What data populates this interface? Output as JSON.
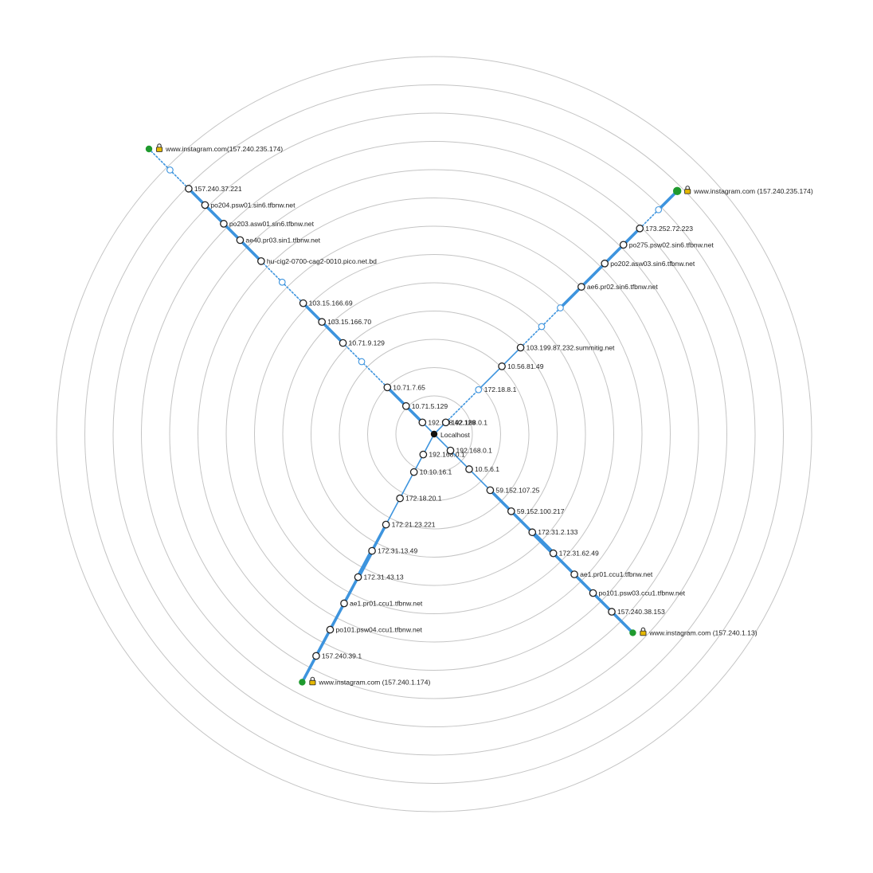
{
  "center": {
    "label": "Localhost"
  },
  "colors": {
    "link": "#3d94de",
    "ring": "#c4c4c4",
    "destination": "#1f9a2e",
    "lock_body": "#e6b800",
    "hop_stroke": "#222222"
  },
  "ring_count": 13,
  "icons": {
    "destination_lock": "lock-icon"
  },
  "routes": [
    {
      "id": "northwest",
      "destination": "www.instagram.com(157.240.235.174)",
      "hops": [
        {
          "label": "192.168.42.129",
          "dist": 0.5,
          "link": "thin"
        },
        {
          "label": "10.71.5.129",
          "dist": 1.2,
          "link": "thick"
        },
        {
          "label": "10.71.7.65",
          "dist": 2.0,
          "link": "thick"
        },
        {
          "label": "",
          "dist": 3.1,
          "link": "dotted",
          "unknown": true
        },
        {
          "label": "10.71.9.129",
          "dist": 3.9,
          "link": "dotted"
        },
        {
          "label": "103.15.166.70",
          "dist": 4.8,
          "link": "thick"
        },
        {
          "label": "103.15.166.69",
          "dist": 5.6,
          "link": "thick"
        },
        {
          "label": "",
          "dist": 6.5,
          "link": "dotted",
          "unknown": true
        },
        {
          "label": "hu-cig2-0700-cag2-0010.pico.net.bd",
          "dist": 7.4,
          "link": "dotted"
        },
        {
          "label": "ae40.pr03.sin1.tfbnw.net",
          "dist": 8.3,
          "link": "thick"
        },
        {
          "label": "po203.asw01.sin6.tfbnw.net",
          "dist": 9.0,
          "link": "thick"
        },
        {
          "label": "po204.psw01.sin6.tfbnw.net",
          "dist": 9.8,
          "link": "thick"
        },
        {
          "label": "157.240.37.221",
          "dist": 10.5,
          "link": "thick"
        },
        {
          "label": "",
          "dist": 11.3,
          "link": "dotted",
          "unknown": true
        }
      ],
      "dest_dist": 12.2,
      "dest_link": "dotted"
    },
    {
      "id": "northeast",
      "destination": "www.instagram.com (157.240.235.174)",
      "hops": [
        {
          "label": "192.168.0.1",
          "dist": 0.5,
          "link": "thin"
        },
        {
          "label": "",
          "dist": 1.9,
          "link": "dotted",
          "unknown": true
        },
        {
          "label": "172.18.8.1",
          "dist": 1.9,
          "link": "none",
          "label_only": true
        },
        {
          "label": "10.56.81.49",
          "dist": 2.9,
          "link": "thin"
        },
        {
          "label": "103.199.87.232.summitig.net",
          "dist": 3.7,
          "link": "thin"
        },
        {
          "label": "",
          "dist": 4.6,
          "link": "dotted",
          "unknown": true
        },
        {
          "label": "",
          "dist": 5.4,
          "link": "dotted",
          "unknown": true
        },
        {
          "label": "ae6.pr02.sin6.tfbnw.net",
          "dist": 6.3,
          "link": "thick"
        },
        {
          "label": "po202.asw03.sin6.tfbnw.net",
          "dist": 7.3,
          "link": "thick"
        },
        {
          "label": "po275.psw02.sin6.tfbnw.net",
          "dist": 8.1,
          "link": "thick"
        },
        {
          "label": "173.252.72.223",
          "dist": 8.8,
          "link": "thick"
        },
        {
          "label": "",
          "dist": 9.6,
          "link": "dotted",
          "unknown": true
        }
      ],
      "dest_dist": 10.4,
      "dest_link": "thick"
    },
    {
      "id": "southwest",
      "destination": "www.instagram.com (157.240.1.174)",
      "hops": [
        {
          "label": "192.168.0.1",
          "dist": 0.7,
          "link": "thin"
        },
        {
          "label": "10.10.16.1",
          "dist": 1.3,
          "link": "thin"
        },
        {
          "label": "172.18.20.1",
          "dist": 2.2,
          "link": "thin"
        },
        {
          "label": "172.21.23.221",
          "dist": 3.1,
          "link": "thin"
        },
        {
          "label": "172.31.13.49",
          "dist": 4.0,
          "link": "thick"
        },
        {
          "label": "172.31.43.13",
          "dist": 4.9,
          "link": "wide"
        },
        {
          "label": "ae1.pr01.ccu1.tfbnw.net",
          "dist": 5.8,
          "link": "thick"
        },
        {
          "label": "po101.psw04.ccu1.tfbnw.net",
          "dist": 6.7,
          "link": "thick"
        },
        {
          "label": "157.240.39.1",
          "dist": 7.6,
          "link": "thick"
        }
      ],
      "dest_dist": 8.5,
      "dest_link": "thick"
    },
    {
      "id": "southeast",
      "destination": "www.instagram.com (157.240.1.13)",
      "hops": [
        {
          "label": "192.168.0.1",
          "dist": 0.7,
          "link": "thin"
        },
        {
          "label": "10.5.6.1",
          "dist": 1.5,
          "link": "thin"
        },
        {
          "label": "59.152.107.25",
          "dist": 2.4,
          "link": "thin"
        },
        {
          "label": "59.152.100.217",
          "dist": 3.3,
          "link": "thick"
        },
        {
          "label": "172.31.2.133",
          "dist": 4.2,
          "link": "thick"
        },
        {
          "label": "172.31.62.49",
          "dist": 5.1,
          "link": "wide"
        },
        {
          "label": "ae1.pr01.ccu1.tfbnw.net",
          "dist": 6.0,
          "link": "thick"
        },
        {
          "label": "po101.psw03.ccu1.tfbnw.net",
          "dist": 6.8,
          "link": "thick"
        },
        {
          "label": "157.240.38.153",
          "dist": 7.6,
          "link": "thick"
        }
      ],
      "dest_dist": 8.5,
      "dest_link": "thick"
    }
  ]
}
